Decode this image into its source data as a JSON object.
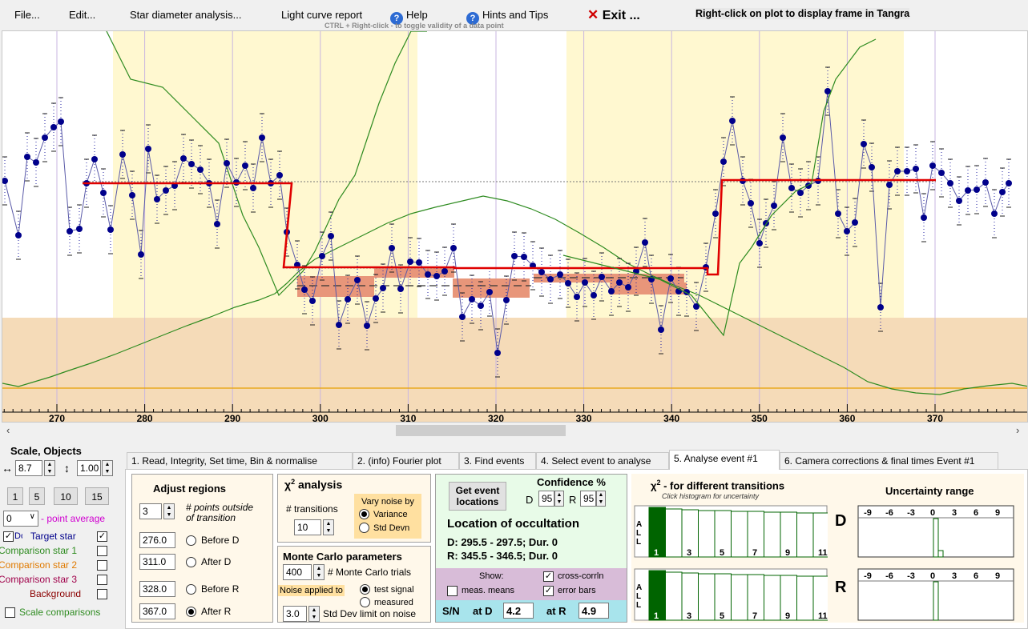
{
  "menu": {
    "file": "File...",
    "edit": "Edit...",
    "star_diameter": "Star diameter analysis...",
    "light_curve": "Light curve report",
    "help": "Help",
    "hints": "Hints and Tips",
    "exit_x": "✕",
    "exit": "Exit ...",
    "right_click_note": "Right-click on plot to display frame in Tangra",
    "ctrl_note": "CTRL + Right-click  -  to toggle validity of a data point"
  },
  "plot": {
    "x_ticks": [
      "270",
      "280",
      "290",
      "300",
      "310",
      "320",
      "330",
      "340",
      "350",
      "360",
      "370"
    ],
    "regions": {
      "before_D": [
        276.0,
        311.0
      ],
      "after_R": [
        328.0,
        367.0
      ]
    }
  },
  "left_panel": {
    "title": "Scale,  Objects",
    "h_scale_icon": "↔",
    "h_scale": "8.7",
    "v_scale_icon": "↕",
    "v_scale": "1.00",
    "buttons": [
      "1",
      "5",
      "10",
      "15"
    ],
    "point_average_value": "0",
    "point_average_label": "- point average",
    "dots_label": "Dots",
    "target_label": "Target star",
    "comp1": "Comparison star 1",
    "comp2": "Comparison star 2",
    "comp3": "Comparison star 3",
    "background": "Background",
    "scale_comparisons": "Scale comparisons"
  },
  "tabs": [
    "1.  Read, Integrity, Set time, Bin & normalise",
    "2. (info)  Fourier plot",
    "3. Find events",
    "4. Select event to analyse",
    "5. Analyse event #1",
    "6. Camera corrections & final times Event #1"
  ],
  "adjust": {
    "title": "Adjust regions",
    "points_outside": "3",
    "points_outside_label1": "# points outside",
    "points_outside_label2": "of transition",
    "before_d_value": "276.0",
    "before_d_label": "Before D",
    "after_d_value": "311.0",
    "after_d_label": "After D",
    "before_r_value": "328.0",
    "before_r_label": "Before R",
    "after_r_value": "367.0",
    "after_r_label": "After R"
  },
  "chi2": {
    "title_sym": "χ",
    "title_sup": "2",
    "title_rest": " analysis",
    "transitions_label": "# transitions",
    "transitions": "10",
    "vary_label1": "Vary noise by",
    "variance": "Variance",
    "stddevn": "Std Devn"
  },
  "monte": {
    "title": "Monte Carlo parameters",
    "trials": "400",
    "trials_label": "# Monte Carlo trials",
    "noise_applied": "Noise applied to",
    "test_signal": "test signal",
    "measured": "measured",
    "sd_limit": "3.0",
    "sd_limit_label": "Std Dev limit on noise"
  },
  "event": {
    "get_btn1": "Get event",
    "get_btn2": "locations",
    "confidence_label": "Confidence %",
    "d_label": "D",
    "d_value": "95",
    "r_label": "R",
    "r_value": "95",
    "location_title": "Location of occultation",
    "d_line": "D: 295.5 - 297.5; Dur. 0",
    "r_line": "R: 345.5 - 346.5; Dur. 0",
    "show_label": "Show:",
    "meas_means": "meas. means",
    "cross_corrln": "cross-corrln",
    "error_bars": "error bars",
    "sn_label": "S/N",
    "at_d_label": "at D",
    "at_d_value": "4.2",
    "at_r_label": "at R",
    "at_r_value": "4.9"
  },
  "histogram": {
    "title_sym": "χ",
    "title_sup": "2",
    "title_rest": " - for different transitions",
    "subtitle": "Click histogram for uncertainty",
    "all_label": "A\nL\nL",
    "tick_labels": [
      "1",
      "3",
      "5",
      "7",
      "9",
      "11"
    ],
    "d_letter": "D",
    "r_letter": "R",
    "uncertainty_title": "Uncertainty range",
    "unc_ticks": [
      "-9",
      "-6",
      "-3",
      "0",
      "3",
      "6",
      "9"
    ]
  },
  "colors": {
    "target": "#00008b",
    "step": "#e00000",
    "comp1": "#2e8b20",
    "comp2": "#e07a00",
    "comp3": "#a0004a",
    "region": "#fff8d0",
    "band": "#f5dbb8"
  }
}
